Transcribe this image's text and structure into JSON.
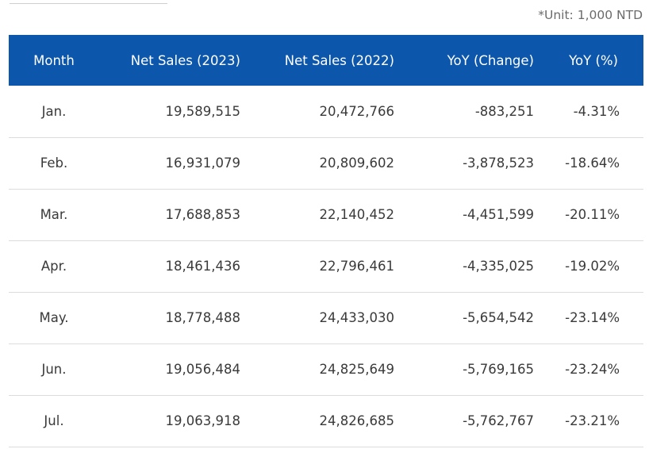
{
  "unit_note": "*Unit: 1,000 NTD",
  "table": {
    "headers": {
      "month": "Month",
      "net_sales_2023": "Net Sales (2023)",
      "net_sales_2022": "Net Sales (2022)",
      "yoy_change": "YoY (Change)",
      "yoy_pct": "YoY (%)"
    },
    "rows": [
      {
        "month": "Jan.",
        "net_sales_2023": "19,589,515",
        "net_sales_2022": "20,472,766",
        "yoy_change": "-883,251",
        "yoy_pct": "-4.31%"
      },
      {
        "month": "Feb.",
        "net_sales_2023": "16,931,079",
        "net_sales_2022": "20,809,602",
        "yoy_change": "-3,878,523",
        "yoy_pct": "-18.64%"
      },
      {
        "month": "Mar.",
        "net_sales_2023": "17,688,853",
        "net_sales_2022": "22,140,452",
        "yoy_change": "-4,451,599",
        "yoy_pct": "-20.11%"
      },
      {
        "month": "Apr.",
        "net_sales_2023": "18,461,436",
        "net_sales_2022": "22,796,461",
        "yoy_change": "-4,335,025",
        "yoy_pct": "-19.02%"
      },
      {
        "month": "May.",
        "net_sales_2023": "18,778,488",
        "net_sales_2022": "24,433,030",
        "yoy_change": "-5,654,542",
        "yoy_pct": "-23.14%"
      },
      {
        "month": "Jun.",
        "net_sales_2023": "19,056,484",
        "net_sales_2022": "24,825,649",
        "yoy_change": "-5,769,165",
        "yoy_pct": "-23.24%"
      },
      {
        "month": "Jul.",
        "net_sales_2023": "19,063,918",
        "net_sales_2022": "24,826,685",
        "yoy_change": "-5,762,767",
        "yoy_pct": "-23.21%"
      }
    ]
  },
  "colors": {
    "header_background": "#0c56ac",
    "header_text": "#ffffff",
    "body_text": "#3a3a3a",
    "row_divider": "#dcdcdc",
    "unit_note": "#6b6b6b"
  }
}
